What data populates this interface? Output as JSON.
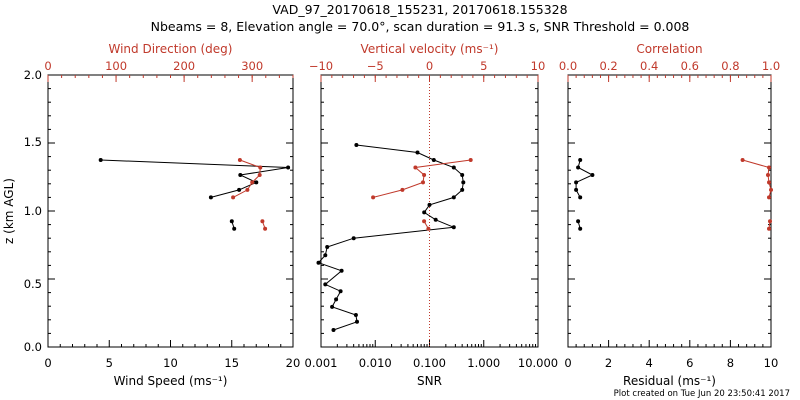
{
  "title_line1": "VAD_97_20170618_155231, 20170618.155328",
  "title_line2": "Nbeams = 8, Elevation angle = 70.0°, scan duration = 91.3 s, SNR Threshold = 0.008",
  "footer": "Plot created on Tue Jun 20 23:50:41 2017",
  "colors": {
    "primary": "#000000",
    "secondary": "#c0392b"
  },
  "y_axis": {
    "label": "z (km AGL)",
    "ylim": [
      0.0,
      2.0
    ],
    "ticks": [
      "0.0",
      "0.5",
      "1.0",
      "1.5",
      "2.0"
    ]
  },
  "chart_data": [
    {
      "type": "line",
      "panel": "wind",
      "xlabel": "Wind Speed (ms⁻¹)",
      "xlim": [
        0,
        20
      ],
      "xticks": [
        "0",
        "5",
        "10",
        "15",
        "20"
      ],
      "top_label": "Wind Direction (deg)",
      "top_xlim": [
        0,
        360
      ],
      "top_ticks": [
        "0",
        "100",
        "200",
        "300"
      ],
      "series": [
        {
          "name": "Wind Speed",
          "color": "black",
          "points": [
            {
              "x": 4.3,
              "y": 1.375
            },
            {
              "x": 19.6,
              "y": 1.32
            },
            {
              "x": 15.7,
              "y": 1.265
            },
            {
              "x": 17.0,
              "y": 1.21
            },
            {
              "x": 15.6,
              "y": 1.155
            },
            {
              "x": 13.3,
              "y": 1.1
            },
            null,
            {
              "x": 15.0,
              "y": 0.925
            },
            {
              "x": 15.2,
              "y": 0.87
            }
          ]
        },
        {
          "name": "Wind Direction",
          "color": "red",
          "points": [
            {
              "x": 282,
              "y": 1.375
            },
            {
              "x": 312,
              "y": 1.32
            },
            {
              "x": 311,
              "y": 1.265
            },
            {
              "x": 300,
              "y": 1.21
            },
            {
              "x": 293,
              "y": 1.155
            },
            {
              "x": 272,
              "y": 1.1
            },
            null,
            {
              "x": 315,
              "y": 0.925
            },
            {
              "x": 319,
              "y": 0.87
            }
          ]
        }
      ]
    },
    {
      "type": "line",
      "panel": "snr",
      "xlabel": "SNR",
      "xscale": "log",
      "xlim": [
        0.001,
        10
      ],
      "xticks": [
        "0.001",
        "0.010",
        "0.100",
        "1.000",
        "10.000"
      ],
      "top_label": "Vertical velocity (ms⁻¹)",
      "top_xlim": [
        -10,
        10
      ],
      "top_ticks": [
        "−10",
        "−5",
        "0",
        "5",
        "10"
      ],
      "reference_line": {
        "top_x": 0,
        "style": "dotted"
      },
      "series": [
        {
          "name": "SNR",
          "color": "black",
          "points": [
            {
              "x": 0.0045,
              "y": 1.485
            },
            {
              "x": 0.06,
              "y": 1.43
            },
            {
              "x": 0.12,
              "y": 1.375
            },
            {
              "x": 0.28,
              "y": 1.32
            },
            {
              "x": 0.4,
              "y": 1.265
            },
            {
              "x": 0.42,
              "y": 1.21
            },
            {
              "x": 0.4,
              "y": 1.155
            },
            {
              "x": 0.28,
              "y": 1.1
            },
            {
              "x": 0.1,
              "y": 1.045
            },
            {
              "x": 0.08,
              "y": 0.99
            },
            {
              "x": 0.13,
              "y": 0.935
            },
            {
              "x": 0.28,
              "y": 0.88
            },
            {
              "x": 0.004,
              "y": 0.8
            },
            {
              "x": 0.0013,
              "y": 0.735
            },
            {
              "x": 0.0012,
              "y": 0.675
            },
            {
              "x": 0.0009,
              "y": 0.62
            },
            {
              "x": 0.0024,
              "y": 0.56
            },
            {
              "x": 0.0012,
              "y": 0.46
            },
            {
              "x": 0.0023,
              "y": 0.41
            },
            {
              "x": 0.0019,
              "y": 0.35
            },
            {
              "x": 0.0016,
              "y": 0.295
            },
            {
              "x": 0.0044,
              "y": 0.235
            },
            {
              "x": 0.0046,
              "y": 0.185
            },
            {
              "x": 0.0017,
              "y": 0.125
            }
          ]
        },
        {
          "name": "Vertical velocity",
          "color": "red",
          "points": [
            {
              "x": 3.8,
              "y": 1.375
            },
            {
              "x": -1.3,
              "y": 1.32
            },
            {
              "x": -0.5,
              "y": 1.265
            },
            {
              "x": -0.6,
              "y": 1.21
            },
            {
              "x": -2.5,
              "y": 1.155
            },
            {
              "x": -5.2,
              "y": 1.1
            },
            null,
            {
              "x": -0.5,
              "y": 0.925
            },
            {
              "x": -0.1,
              "y": 0.87
            }
          ]
        }
      ]
    },
    {
      "type": "line",
      "panel": "residual",
      "xlabel": "Residual (ms⁻¹)",
      "xlim": [
        0,
        10
      ],
      "xticks": [
        "0",
        "2",
        "4",
        "6",
        "8",
        "10"
      ],
      "top_label": "Correlation",
      "top_xlim": [
        0,
        1
      ],
      "top_ticks": [
        "0.0",
        "0.2",
        "0.4",
        "0.6",
        "0.8",
        "1.0"
      ],
      "series": [
        {
          "name": "Residual",
          "color": "black",
          "points": [
            {
              "x": 0.6,
              "y": 1.375
            },
            {
              "x": 0.5,
              "y": 1.32
            },
            {
              "x": 1.2,
              "y": 1.265
            },
            {
              "x": 0.4,
              "y": 1.21
            },
            {
              "x": 0.4,
              "y": 1.155
            },
            {
              "x": 0.6,
              "y": 1.1
            },
            null,
            {
              "x": 0.5,
              "y": 0.925
            },
            {
              "x": 0.6,
              "y": 0.87
            }
          ]
        },
        {
          "name": "Correlation",
          "color": "red",
          "points": [
            {
              "x": 0.86,
              "y": 1.375
            },
            {
              "x": 0.99,
              "y": 1.32
            },
            {
              "x": 0.985,
              "y": 1.265
            },
            {
              "x": 0.99,
              "y": 1.21
            },
            {
              "x": 1.0,
              "y": 1.155
            },
            {
              "x": 0.99,
              "y": 1.1
            },
            null,
            {
              "x": 0.995,
              "y": 0.925
            },
            {
              "x": 0.99,
              "y": 0.87
            }
          ]
        }
      ]
    }
  ]
}
